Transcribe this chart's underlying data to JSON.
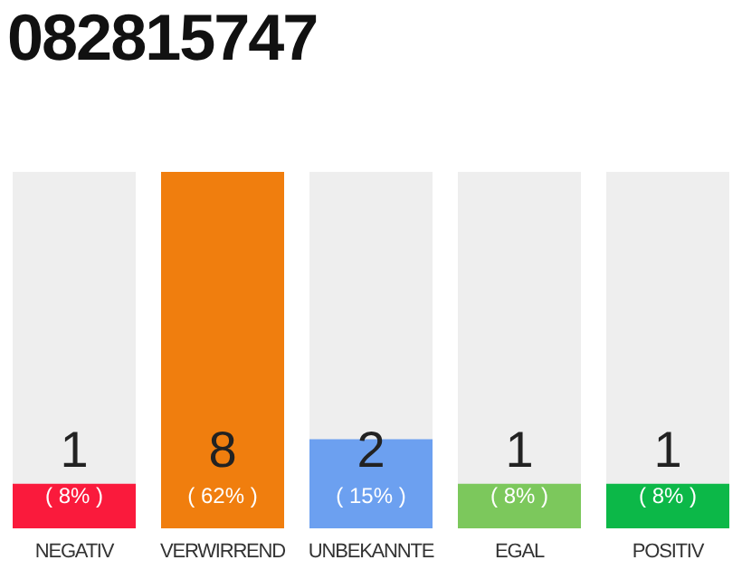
{
  "chart_data": {
    "type": "bar",
    "title": "082815747",
    "categories": [
      "NEGATIV",
      "VERWIRREND",
      "UNBEKANNTE",
      "EGAL",
      "POSITIV"
    ],
    "values": [
      1,
      8,
      2,
      1,
      1
    ],
    "colors": [
      "#fa1a3c",
      "#f07e0e",
      "#6ca0f0",
      "#7cc85c",
      "#0cb848"
    ],
    "ylim": [
      0,
      8
    ],
    "tick_labels": "x",
    "data_labels": true,
    "grid": false,
    "legend": false,
    "annotations": [
      "( 8% )",
      "( 62% )",
      "( 15% )",
      "( 8% )",
      "( 8% )"
    ]
  }
}
